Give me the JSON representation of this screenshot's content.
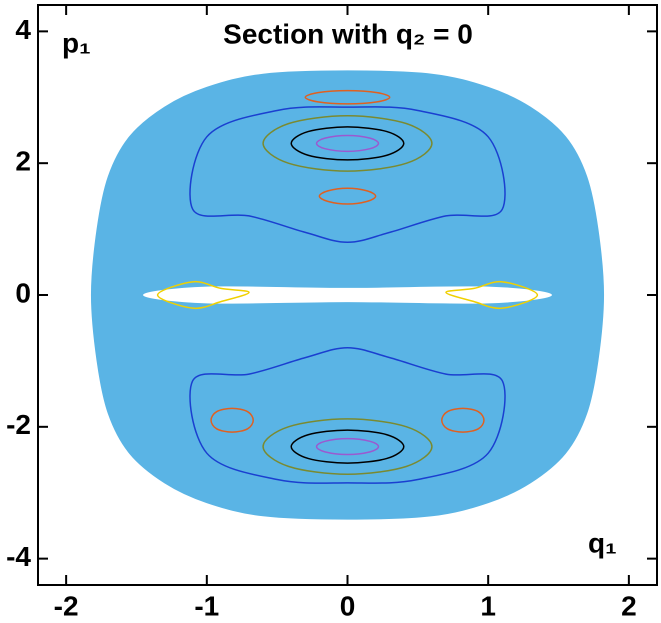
{
  "chart_data": {
    "type": "scatter",
    "title": "Section with q₂ = 0",
    "y_label": "p₁",
    "x_label": "q₁",
    "xlim": [
      -2.2,
      2.2
    ],
    "ylim": [
      -4.4,
      4.4
    ],
    "xticks": [
      -2,
      -1,
      0,
      1,
      2
    ],
    "yticks": [
      -4,
      -2,
      0,
      2,
      4
    ],
    "series": [
      {
        "color": "#5ab4e5",
        "fill": "#5ab4e5",
        "x": [
          0,
          0.6,
          1.0,
          1.3,
          1.55,
          1.7,
          1.78,
          1.82,
          1.78,
          1.7,
          1.55,
          1.3,
          1.0,
          0.6,
          0,
          -0.6,
          -1.0,
          -1.3,
          -1.55,
          -1.7,
          -1.78,
          -1.82,
          -1.78,
          -1.7,
          -1.55,
          -1.3,
          -1.0,
          -0.6
        ],
        "y": [
          3.4,
          3.35,
          3.15,
          2.85,
          2.4,
          1.8,
          1.0,
          0,
          -1.0,
          -1.8,
          -2.4,
          -2.85,
          -3.15,
          -3.35,
          -3.4,
          -3.35,
          -3.15,
          -2.85,
          -2.4,
          -1.8,
          -1.0,
          0,
          1.0,
          1.8,
          2.4,
          2.85,
          3.15,
          3.35
        ]
      },
      {
        "color": "#ffffff",
        "fill": "#ffffff",
        "x": [
          -1.45,
          -1.0,
          0,
          1.0,
          1.45,
          1.0,
          0,
          -1.0
        ],
        "y": [
          0,
          0.12,
          0.1,
          0.12,
          0,
          -0.12,
          -0.1,
          -0.12
        ]
      },
      {
        "color": "#f0d000",
        "x": [
          -1.35,
          -1.1,
          -0.9,
          -0.7,
          -0.9,
          -1.1
        ],
        "y": [
          0,
          0.2,
          0.1,
          0.04,
          -0.1,
          -0.2
        ]
      },
      {
        "color": "#f0d000",
        "x": [
          1.35,
          1.1,
          0.9,
          0.7,
          0.9,
          1.1
        ],
        "y": [
          0,
          0.2,
          0.1,
          0.04,
          -0.1,
          -0.2
        ]
      },
      {
        "color": "#1a3fd0",
        "x": [
          -1.1,
          -1.0,
          -0.5,
          0,
          0.5,
          1.0,
          1.1,
          0.7,
          0.3,
          0,
          -0.3,
          -0.7
        ],
        "y": [
          1.3,
          2.4,
          2.8,
          2.85,
          2.8,
          2.4,
          1.3,
          1.2,
          0.95,
          0.8,
          0.95,
          1.2
        ]
      },
      {
        "color": "#1a3fd0",
        "x": [
          -1.1,
          -1.0,
          -0.5,
          0,
          0.5,
          1.0,
          1.1,
          0.7,
          0.3,
          0,
          -0.3,
          -0.7
        ],
        "y": [
          -1.3,
          -2.4,
          -2.8,
          -2.85,
          -2.8,
          -2.4,
          -1.3,
          -1.2,
          -0.95,
          -0.8,
          -0.95,
          -1.2
        ]
      },
      {
        "color": "#7a8a30",
        "x": [
          0.6,
          0.42,
          0,
          -0.42,
          -0.6,
          -0.42,
          0,
          0.42
        ],
        "y": [
          2.3,
          2.6,
          2.72,
          2.6,
          2.3,
          2.0,
          1.88,
          2.0
        ]
      },
      {
        "color": "#000000",
        "x": [
          0.4,
          0.28,
          0,
          -0.28,
          -0.4,
          -0.28,
          0,
          0.28
        ],
        "y": [
          2.3,
          2.48,
          2.55,
          2.48,
          2.3,
          2.12,
          2.05,
          2.12
        ]
      },
      {
        "color": "#9b59d0",
        "x": [
          0.22,
          0.16,
          0,
          -0.16,
          -0.22,
          -0.16,
          0,
          0.16
        ],
        "y": [
          2.3,
          2.38,
          2.42,
          2.38,
          2.3,
          2.22,
          2.18,
          2.22
        ]
      },
      {
        "color": "#7a8a30",
        "x": [
          0.6,
          0.42,
          0,
          -0.42,
          -0.6,
          -0.42,
          0,
          0.42
        ],
        "y": [
          -2.3,
          -2.6,
          -2.72,
          -2.6,
          -2.3,
          -2.0,
          -1.88,
          -2.0
        ]
      },
      {
        "color": "#000000",
        "x": [
          0.4,
          0.28,
          0,
          -0.28,
          -0.4,
          -0.28,
          0,
          0.28
        ],
        "y": [
          -2.3,
          -2.48,
          -2.55,
          -2.48,
          -2.3,
          -2.12,
          -2.05,
          -2.12
        ]
      },
      {
        "color": "#9b59d0",
        "x": [
          0.22,
          0.16,
          0,
          -0.16,
          -0.22,
          -0.16,
          0,
          0.16
        ],
        "y": [
          -2.3,
          -2.38,
          -2.42,
          -2.38,
          -2.3,
          -2.22,
          -2.18,
          -2.22
        ]
      },
      {
        "color": "#e06020",
        "x": [
          0.2,
          0.14,
          0,
          -0.14,
          -0.2,
          -0.14,
          0,
          0.14
        ],
        "y": [
          1.5,
          1.58,
          1.62,
          1.58,
          1.5,
          1.42,
          1.38,
          1.42
        ]
      },
      {
        "color": "#e06020",
        "x": [
          0.3,
          0.21,
          0,
          -0.21,
          -0.3,
          -0.21,
          0,
          0.21
        ],
        "y": [
          3.0,
          3.07,
          3.1,
          3.07,
          3.0,
          2.93,
          2.9,
          2.93
        ]
      },
      {
        "color": "#e06020",
        "x": [
          -0.67,
          -0.71,
          -0.82,
          -0.93,
          -0.97,
          -0.93,
          -0.82,
          -0.71
        ],
        "y": [
          -1.9,
          -1.77,
          -1.72,
          -1.77,
          -1.9,
          -2.03,
          -2.08,
          -2.03
        ]
      },
      {
        "color": "#e06020",
        "x": [
          0.67,
          0.71,
          0.82,
          0.93,
          0.97,
          0.93,
          0.82,
          0.71
        ],
        "y": [
          -1.9,
          -1.77,
          -1.72,
          -1.77,
          -1.9,
          -2.03,
          -2.08,
          -2.03
        ]
      }
    ]
  }
}
